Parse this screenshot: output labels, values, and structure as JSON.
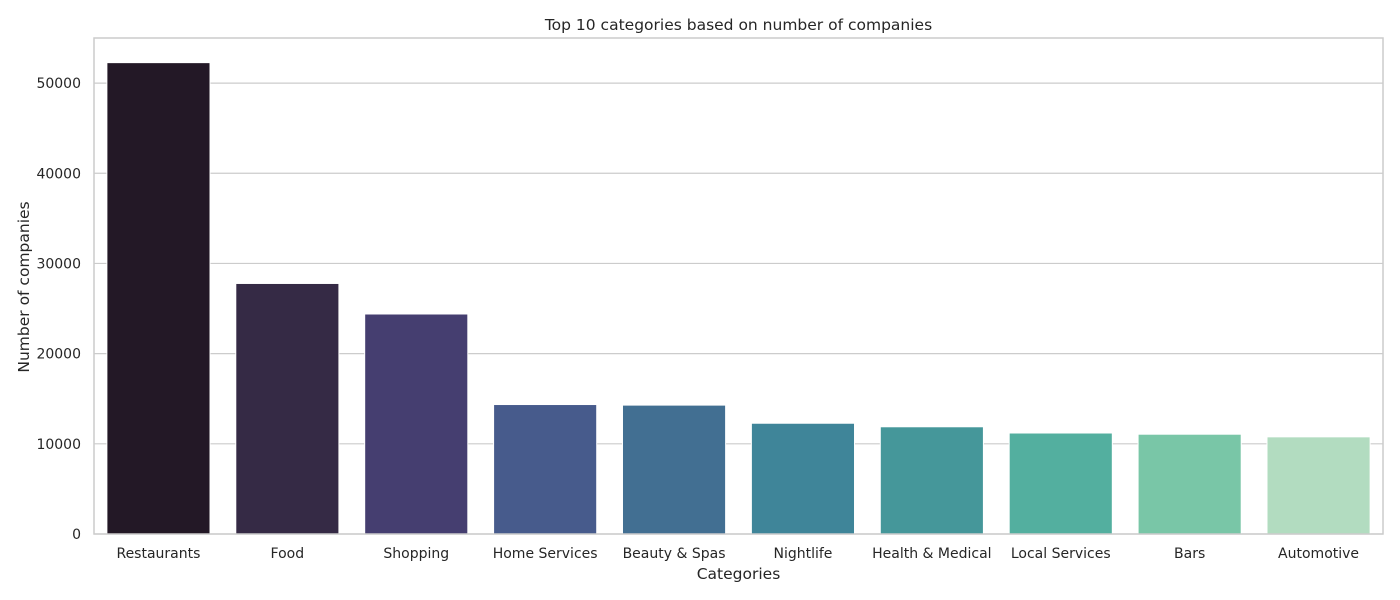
{
  "chart_data": {
    "type": "bar",
    "title": "Top 10 categories based on number of companies",
    "xlabel": "Categories",
    "ylabel": "Number of companies",
    "categories": [
      "Restaurants",
      "Food",
      "Shopping",
      "Home Services",
      "Beauty & Spas",
      "Nightlife",
      "Health & Medical",
      "Local Services",
      "Bars",
      "Automotive"
    ],
    "values": [
      52268,
      27781,
      24395,
      14356,
      14292,
      12281,
      11890,
      11198,
      11065,
      10773
    ],
    "ylim": [
      0,
      55000
    ],
    "yticks": [
      0,
      10000,
      20000,
      30000,
      40000,
      50000
    ],
    "ytick_labels": [
      "0",
      "10000",
      "20000",
      "30000",
      "40000",
      "50000"
    ],
    "grid": "horizontal",
    "colors": [
      "#231826",
      "#352a45",
      "#453e70",
      "#475b8c",
      "#426f92",
      "#3f8599",
      "#45979a",
      "#53af9f",
      "#79c6a7",
      "#b2dcc0"
    ]
  }
}
